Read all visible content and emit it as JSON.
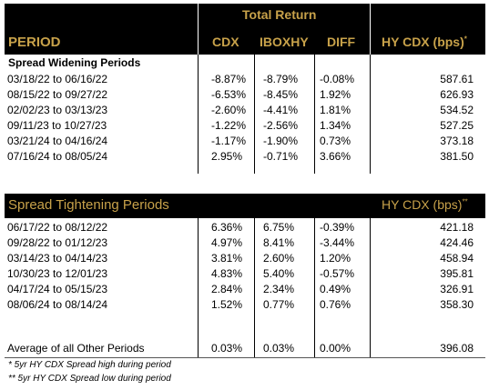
{
  "header": {
    "total_return": "Total Return",
    "period": "PERIOD",
    "cdx": "CDX",
    "iboxhy": "IBOXHY",
    "diff": "DIFF",
    "hy_cdx": "HY CDX (bps)",
    "hy_cdx_mark": "*"
  },
  "widening": {
    "title": "Spread Widening Periods",
    "rows": [
      {
        "period": "03/18/22 to 06/16/22",
        "cdx": "-8.87%",
        "iboxhy": "-8.79%",
        "diff": "-0.08%",
        "hy": "587.61"
      },
      {
        "period": "08/15/22 to 09/27/22",
        "cdx": "-6.53%",
        "iboxhy": "-8.45%",
        "diff": "1.92%",
        "hy": "626.93"
      },
      {
        "period": "02/02/23 to 03/13/23",
        "cdx": "-2.60%",
        "iboxhy": "-4.41%",
        "diff": "1.81%",
        "hy": "534.52"
      },
      {
        "period": "09/11/23 to 10/27/23",
        "cdx": "-1.22%",
        "iboxhy": "-2.56%",
        "diff": "1.34%",
        "hy": "527.25"
      },
      {
        "period": "03/21/24 to 04/16/24",
        "cdx": "-1.17%",
        "iboxhy": "-1.90%",
        "diff": "0.73%",
        "hy": "373.18"
      },
      {
        "period": "07/16/24 to 08/05/24",
        "cdx": "2.95%",
        "iboxhy": "-0.71%",
        "diff": "3.66%",
        "hy": "381.50"
      }
    ]
  },
  "tightening": {
    "title": "Spread Tightening Periods",
    "hy_cdx": "HY CDX (bps)",
    "hy_cdx_mark": "**",
    "rows": [
      {
        "period": "06/17/22 to 08/12/22",
        "cdx": "6.36%",
        "iboxhy": "6.75%",
        "diff": "-0.39%",
        "hy": "421.18"
      },
      {
        "period": "09/28/22 to 01/12/23",
        "cdx": "4.97%",
        "iboxhy": "8.41%",
        "diff": "-3.44%",
        "hy": "424.46"
      },
      {
        "period": "03/14/23 to 04/14/23",
        "cdx": "3.81%",
        "iboxhy": "2.60%",
        "diff": "1.20%",
        "hy": "458.94"
      },
      {
        "period": "10/30/23 to 12/01/23",
        "cdx": "4.83%",
        "iboxhy": "5.40%",
        "diff": "-0.57%",
        "hy": "395.81"
      },
      {
        "period": "04/17/24 to 05/15/23",
        "cdx": "2.84%",
        "iboxhy": "2.34%",
        "diff": "0.49%",
        "hy": "326.91"
      },
      {
        "period": "08/06/24 to 08/14/24",
        "cdx": "1.52%",
        "iboxhy": "0.77%",
        "diff": "0.76%",
        "hy": "358.30"
      }
    ]
  },
  "average": {
    "period": "Average of all Other Periods",
    "cdx": "0.03%",
    "iboxhy": "0.03%",
    "diff": "0.00%",
    "hy": "396.08"
  },
  "footnotes": [
    "* 5yr HY CDX Spread high during period",
    "** 5yr HY CDX Spread low during period"
  ]
}
